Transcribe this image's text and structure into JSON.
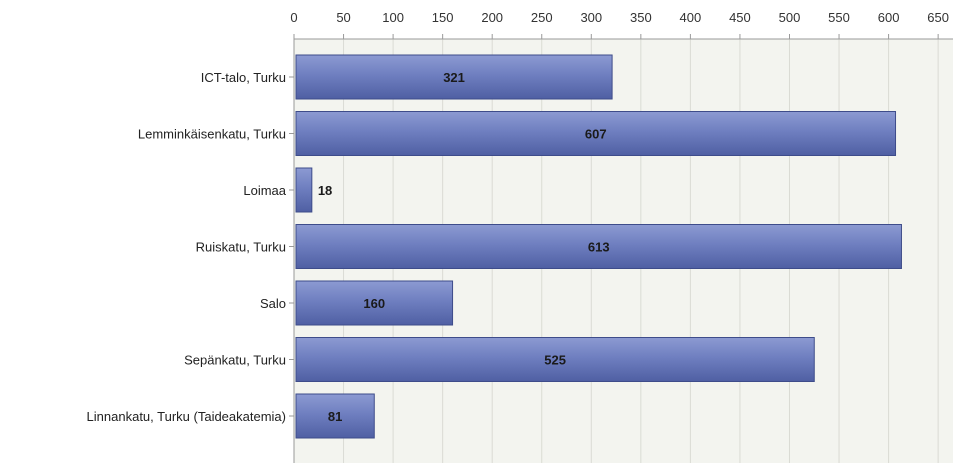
{
  "chart_data": {
    "type": "bar",
    "orientation": "horizontal",
    "categories": [
      "ICT-talo, Turku",
      "Lemminkäisenkatu, Turku",
      "Loimaa",
      "Ruiskatu, Turku",
      "Salo",
      "Sepänkatu, Turku",
      "Linnankatu, Turku (Taideakatemia)"
    ],
    "values": [
      321,
      607,
      18,
      613,
      160,
      525,
      81
    ],
    "value_labels": [
      "321",
      "607",
      "18",
      "613",
      "160",
      "525",
      "81"
    ],
    "xticks": [
      0,
      50,
      100,
      150,
      200,
      250,
      300,
      350,
      400,
      450,
      500,
      550,
      600,
      650
    ],
    "xlim": [
      0,
      665
    ],
    "xaxis_position": "top",
    "grid": true,
    "title": "",
    "xlabel": "",
    "ylabel": "",
    "colors": {
      "bar_fill": "#6f7fc0",
      "bar_fill_light": "#8c9ad2",
      "bar_fill_dark": "#4f5fa3",
      "bar_stroke": "#3e4c8a",
      "plot_background": "#f3f4ef",
      "grid": "#dadbd4",
      "axis": "#9a9a9a"
    }
  }
}
